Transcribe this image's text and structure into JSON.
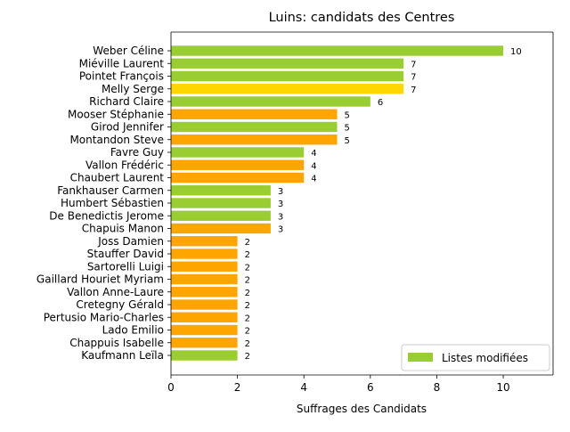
{
  "chart_data": {
    "type": "bar",
    "orientation": "horizontal",
    "title": "Luins: candidats des Centres",
    "xlabel": "Suffrages des Candidats",
    "ylabel": "",
    "xlim": [
      0,
      11.5
    ],
    "xticks": [
      "0",
      "2",
      "4",
      "6",
      "8",
      "10"
    ],
    "grid": false,
    "legend": {
      "position": "bottom-right",
      "entries": [
        {
          "label": "Listes modifiées",
          "color": "#9ACD32"
        }
      ]
    },
    "colors": {
      "green": "#9ACD32",
      "orange": "#FFA500",
      "yellow": "#FFD700"
    },
    "bars": [
      {
        "name": "Weber Céline",
        "value": 10,
        "label": "10",
        "color": "green"
      },
      {
        "name": "Miéville Laurent",
        "value": 7,
        "label": "7",
        "color": "green"
      },
      {
        "name": "Pointet François",
        "value": 7,
        "label": "7",
        "color": "green"
      },
      {
        "name": "Melly Serge",
        "value": 7,
        "label": "7",
        "color": "yellow"
      },
      {
        "name": "Richard Claire",
        "value": 6,
        "label": "6",
        "color": "green"
      },
      {
        "name": "Mooser Stéphanie",
        "value": 5,
        "label": "5",
        "color": "orange"
      },
      {
        "name": "Girod Jennifer",
        "value": 5,
        "label": "5",
        "color": "green"
      },
      {
        "name": "Montandon Steve",
        "value": 5,
        "label": "5",
        "color": "orange"
      },
      {
        "name": "Favre Guy",
        "value": 4,
        "label": "4",
        "color": "green"
      },
      {
        "name": "Vallon Frédéric",
        "value": 4,
        "label": "4",
        "color": "orange"
      },
      {
        "name": "Chaubert Laurent",
        "value": 4,
        "label": "4",
        "color": "orange"
      },
      {
        "name": "Fankhauser Carmen",
        "value": 3,
        "label": "3",
        "color": "green"
      },
      {
        "name": "Humbert Sébastien",
        "value": 3,
        "label": "3",
        "color": "green"
      },
      {
        "name": "De Benedictis Jerome",
        "value": 3,
        "label": "3",
        "color": "green"
      },
      {
        "name": "Chapuis Manon",
        "value": 3,
        "label": "3",
        "color": "orange"
      },
      {
        "name": "Joss Damien",
        "value": 2,
        "label": "2",
        "color": "orange"
      },
      {
        "name": "Stauffer David",
        "value": 2,
        "label": "2",
        "color": "orange"
      },
      {
        "name": "Sartorelli Luigi",
        "value": 2,
        "label": "2",
        "color": "orange"
      },
      {
        "name": "Gaillard Houriet Myriam",
        "value": 2,
        "label": "2",
        "color": "orange"
      },
      {
        "name": "Vallon Anne-Laure",
        "value": 2,
        "label": "2",
        "color": "orange"
      },
      {
        "name": "Cretegny Gérald",
        "value": 2,
        "label": "2",
        "color": "orange"
      },
      {
        "name": "Pertusio Mario-Charles",
        "value": 2,
        "label": "2",
        "color": "orange"
      },
      {
        "name": "Lado Emilio",
        "value": 2,
        "label": "2",
        "color": "orange"
      },
      {
        "name": "Chappuis Isabelle",
        "value": 2,
        "label": "2",
        "color": "orange"
      },
      {
        "name": "Kaufmann Leïla",
        "value": 2,
        "label": "2",
        "color": "green"
      }
    ]
  }
}
